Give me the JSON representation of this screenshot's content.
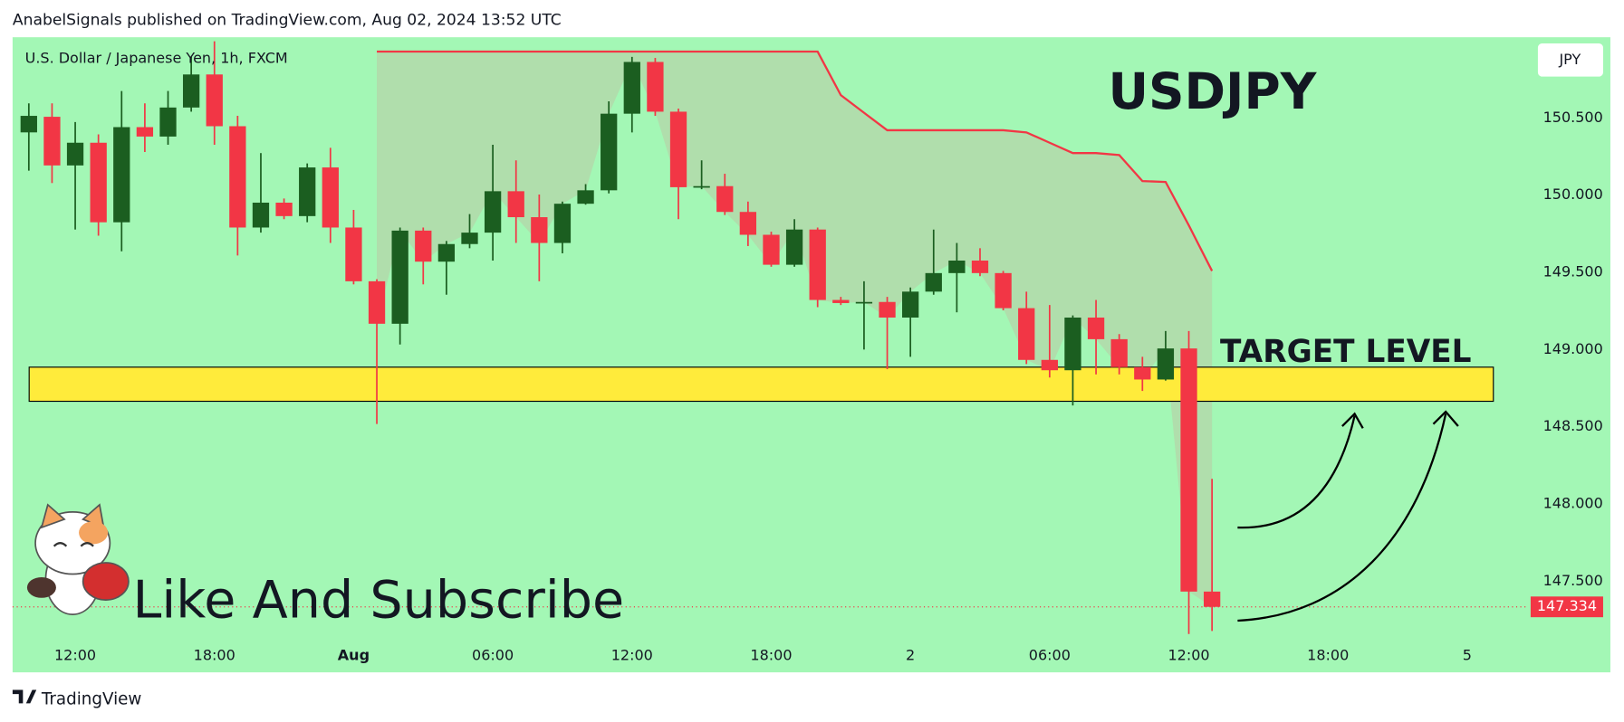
{
  "header": "AnabelSignals published on TradingView.com, Aug 02, 2024 13:52 UTC",
  "footer": "TradingView",
  "promo": "Like And Subscribe",
  "currency": "JPY",
  "chart_data": {
    "type": "candlestick",
    "title": "USDJPY",
    "subtitle": "U.S. Dollar / Japanese Yen, 1h, FXCM",
    "up_color": "#1b5e20",
    "down_color": "#f23645",
    "open": [
      150.406,
      150.507,
      150.192,
      150.339,
      149.824,
      150.44,
      150.379,
      150.567,
      150.781,
      150.446,
      149.79,
      149.951,
      149.864,
      150.179,
      149.79,
      149.442,
      149.167,
      149.77,
      149.569,
      149.683,
      149.757,
      150.025,
      149.857,
      149.69,
      149.944,
      150.031,
      150.527,
      150.862,
      150.54,
      150.051,
      150.058,
      149.891,
      149.743,
      149.549,
      149.777,
      149.321,
      149.301,
      149.308,
      149.207,
      149.375,
      149.495,
      149.576,
      149.495,
      149.268,
      148.933,
      148.866,
      149.207,
      149.067,
      148.886,
      148.806,
      149.007,
      147.433
    ],
    "high": [
      150.594,
      150.594,
      150.473,
      150.393,
      150.674,
      150.594,
      150.674,
      150.895,
      150.996,
      150.513,
      150.272,
      149.978,
      150.205,
      150.306,
      149.904,
      149.455,
      149.79,
      149.79,
      149.703,
      149.877,
      150.326,
      150.225,
      150.004,
      149.958,
      150.071,
      150.607,
      150.895,
      150.888,
      150.56,
      150.225,
      150.138,
      149.958,
      149.763,
      149.844,
      149.79,
      149.341,
      149.442,
      149.341,
      149.402,
      149.777,
      149.69,
      149.656,
      149.509,
      149.375,
      149.288,
      149.221,
      149.321,
      149.1,
      148.953,
      149.12,
      149.12,
      148.163
    ],
    "low": [
      150.158,
      150.078,
      149.777,
      149.737,
      149.636,
      150.279,
      150.326,
      150.54,
      150.326,
      149.609,
      149.757,
      149.844,
      149.824,
      149.69,
      149.422,
      148.518,
      149.033,
      149.422,
      149.355,
      149.656,
      149.576,
      149.69,
      149.442,
      149.623,
      149.938,
      150.011,
      150.406,
      150.513,
      149.844,
      150.038,
      149.871,
      149.67,
      149.536,
      149.536,
      149.274,
      149.288,
      149.0,
      148.873,
      148.953,
      149.355,
      149.241,
      149.475,
      149.254,
      148.906,
      148.819,
      148.638,
      148.839,
      148.839,
      148.732,
      148.799,
      147.158,
      147.178
    ],
    "close": [
      150.513,
      150.192,
      150.339,
      149.824,
      150.44,
      150.379,
      150.567,
      150.781,
      150.446,
      149.79,
      149.951,
      149.864,
      150.179,
      149.79,
      149.442,
      149.167,
      149.77,
      149.569,
      149.683,
      149.757,
      150.025,
      149.857,
      149.69,
      149.944,
      150.031,
      150.527,
      150.862,
      150.54,
      150.051,
      150.058,
      149.891,
      149.743,
      149.549,
      149.777,
      149.321,
      149.301,
      149.308,
      149.207,
      149.375,
      149.495,
      149.576,
      149.495,
      149.268,
      148.933,
      148.866,
      149.207,
      149.067,
      148.886,
      148.806,
      149.007,
      147.433,
      147.334
    ],
    "trend_line": {
      "color": "#f23645",
      "values": [
        null,
        null,
        null,
        null,
        null,
        null,
        null,
        null,
        null,
        null,
        null,
        null,
        null,
        null,
        null,
        150.929,
        150.929,
        150.929,
        150.929,
        150.929,
        150.929,
        150.929,
        150.929,
        150.929,
        150.929,
        150.929,
        150.929,
        150.929,
        150.929,
        150.929,
        150.929,
        150.929,
        150.929,
        150.929,
        150.929,
        150.647,
        150.533,
        150.42,
        150.42,
        150.42,
        150.42,
        150.42,
        150.42,
        150.406,
        150.339,
        150.272,
        150.272,
        150.259,
        150.091,
        150.085,
        149.804,
        149.509
      ]
    },
    "zone": {
      "label": "TARGET LEVEL",
      "top": 148.886,
      "bottom": 148.665,
      "color": "#ffeb3b"
    },
    "last_price": {
      "value": 147.334,
      "label": "147.334"
    },
    "xlim": [
      -0.7,
      64.6
    ],
    "xticks": [
      {
        "value": 2,
        "label": "12:00"
      },
      {
        "value": 8,
        "label": "18:00"
      },
      {
        "value": 14,
        "label": "Aug"
      },
      {
        "value": 20,
        "label": "06:00"
      },
      {
        "value": 26,
        "label": "12:00"
      },
      {
        "value": 32,
        "label": "18:00"
      },
      {
        "value": 38,
        "label": "2"
      },
      {
        "value": 44,
        "label": "06:00"
      },
      {
        "value": 50,
        "label": "12:00"
      },
      {
        "value": 56,
        "label": "18:00"
      },
      {
        "value": 62,
        "label": "5"
      }
    ],
    "ylim": [
      146.91,
      151.022
    ],
    "yticks": [
      {
        "value": 147.5,
        "label": "147.500"
      },
      {
        "value": 148,
        "label": "148.000"
      },
      {
        "value": 148.5,
        "label": "148.500"
      },
      {
        "value": 149,
        "label": "149.000"
      },
      {
        "value": 149.5,
        "label": "149.500"
      },
      {
        "value": 150,
        "label": "150.000"
      },
      {
        "value": 150.5,
        "label": "150.500"
      }
    ],
    "background": "#a3f7b5"
  }
}
